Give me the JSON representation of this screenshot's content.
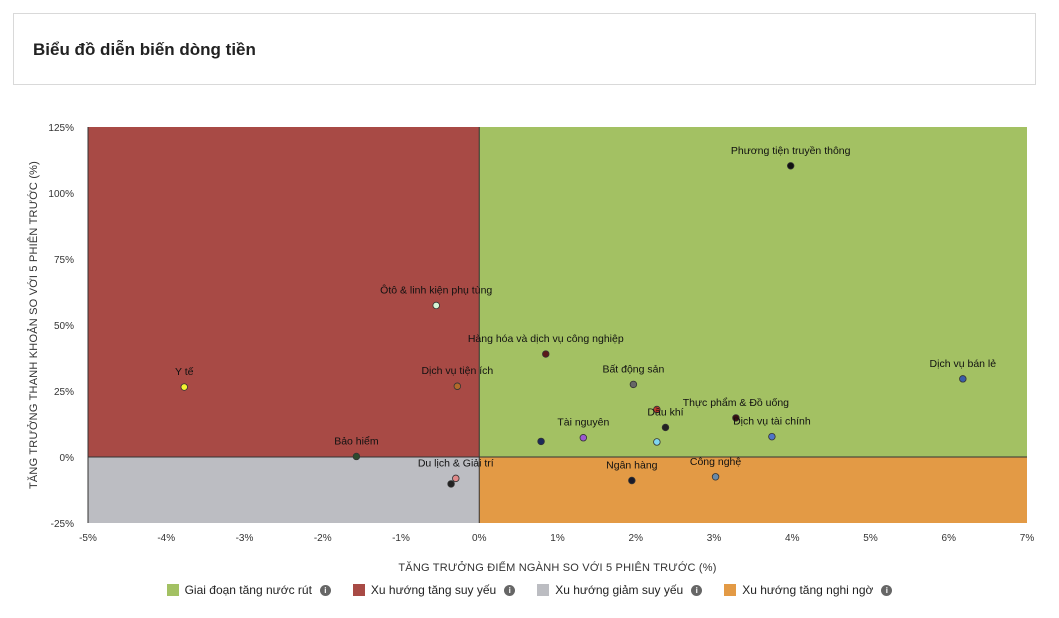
{
  "header": {
    "title": "Biểu đồ diễn biến dòng tiền"
  },
  "quadrant_colors": {
    "top_right": "#a3c163",
    "top_left": "#a84a45",
    "bottom_left": "#bcbdc2",
    "bottom_right": "#e39a45"
  },
  "legend": [
    {
      "label": "Giai đoạn tăng nước rút",
      "color": "#a3c163",
      "icon": "info-icon"
    },
    {
      "label": "Xu hướng tăng suy yếu",
      "color": "#a84a45",
      "icon": "info-icon"
    },
    {
      "label": "Xu hướng giảm suy yếu",
      "color": "#bcbdc2",
      "icon": "info-icon"
    },
    {
      "label": "Xu hướng tăng nghi ngờ",
      "color": "#e39a45",
      "icon": "info-icon"
    }
  ],
  "chart_data": {
    "type": "scatter",
    "title": "",
    "xlabel": "TĂNG TRƯỞNG ĐIỂM NGÀNH SO VỚI 5 PHIÊN TRƯỚC (%)",
    "ylabel": "TĂNG TRƯỞNG THANH KHOẢN SO VỚI 5 PHIÊN TRƯỚC (%)",
    "xlim": [
      -5,
      7
    ],
    "ylim": [
      -25,
      125
    ],
    "x_ticks": [
      {
        "value": -5,
        "label": "-5%"
      },
      {
        "value": -4,
        "label": "-4%"
      },
      {
        "value": -3,
        "label": "-3%"
      },
      {
        "value": -2,
        "label": "-2%"
      },
      {
        "value": -1,
        "label": "-1%"
      },
      {
        "value": 0,
        "label": "0%"
      },
      {
        "value": 1,
        "label": "1%"
      },
      {
        "value": 2,
        "label": "2%"
      },
      {
        "value": 3,
        "label": "3%"
      },
      {
        "value": 4,
        "label": "4%"
      },
      {
        "value": 5,
        "label": "5%"
      },
      {
        "value": 6,
        "label": "6%"
      },
      {
        "value": 7,
        "label": "7%"
      }
    ],
    "y_ticks": [
      {
        "value": -25,
        "label": "-25%"
      },
      {
        "value": 0,
        "label": "0%"
      },
      {
        "value": 25,
        "label": "25%"
      },
      {
        "value": 50,
        "label": "50%"
      },
      {
        "value": 75,
        "label": "75%"
      },
      {
        "value": 100,
        "label": "100%"
      },
      {
        "value": 125,
        "label": "125%"
      }
    ],
    "grid": false,
    "points": [
      {
        "name": "Phương tiện truyền thông",
        "x": 3.98,
        "y": 110.3,
        "color": "#111111"
      },
      {
        "name": "Ôtô & linh kiện phụ tùng",
        "x": -0.55,
        "y": 57.4,
        "color": "#d6f5d6"
      },
      {
        "name": "Hàng hóa và dịch vụ công nghiệp",
        "x": 0.85,
        "y": 39.0,
        "color": "#5a1a1a"
      },
      {
        "name": "Y tế",
        "x": -3.77,
        "y": 26.5,
        "color": "#f2f230"
      },
      {
        "name": "Dịch vụ tiện ích",
        "x": -0.28,
        "y": 26.8,
        "color": "#b36a2a"
      },
      {
        "name": "Bất động sản",
        "x": 1.97,
        "y": 27.5,
        "color": "#666666"
      },
      {
        "name": "Dịch vụ bán lẻ",
        "x": 6.18,
        "y": 29.6,
        "color": "#3a5ea8"
      },
      {
        "name": "Thực phẩm & Đồ uống",
        "x": 3.28,
        "y": 14.8,
        "color": "#3a0f0f"
      },
      {
        "name": "Dầu khí",
        "x": 2.38,
        "y": 11.2,
        "color": "#222222"
      },
      {
        "name": "",
        "x": 2.27,
        "y": 18.0,
        "color": "#c0392b"
      },
      {
        "name": "Tài nguyên",
        "x": 1.33,
        "y": 7.3,
        "color": "#9b59d0"
      },
      {
        "name": "Dịch vụ tài chính",
        "x": 3.74,
        "y": 7.7,
        "color": "#4f74c8"
      },
      {
        "name": "",
        "x": 0.79,
        "y": 5.9,
        "color": "#1c2a5a"
      },
      {
        "name": "",
        "x": 2.27,
        "y": 5.7,
        "color": "#7fd6f0"
      },
      {
        "name": "Bảo hiểm",
        "x": -1.57,
        "y": 0.2,
        "color": "#2d4a2d"
      },
      {
        "name": "Du lịch & Giải trí",
        "x": -0.3,
        "y": -8.1,
        "color": "#e08a8a"
      },
      {
        "name": "",
        "x": -0.36,
        "y": -10.2,
        "color": "#222222"
      },
      {
        "name": "Ngân hàng",
        "x": 1.95,
        "y": -8.9,
        "color": "#1a1a2a"
      },
      {
        "name": "Công nghệ",
        "x": 3.02,
        "y": -7.5,
        "color": "#6a8aa8"
      }
    ]
  }
}
